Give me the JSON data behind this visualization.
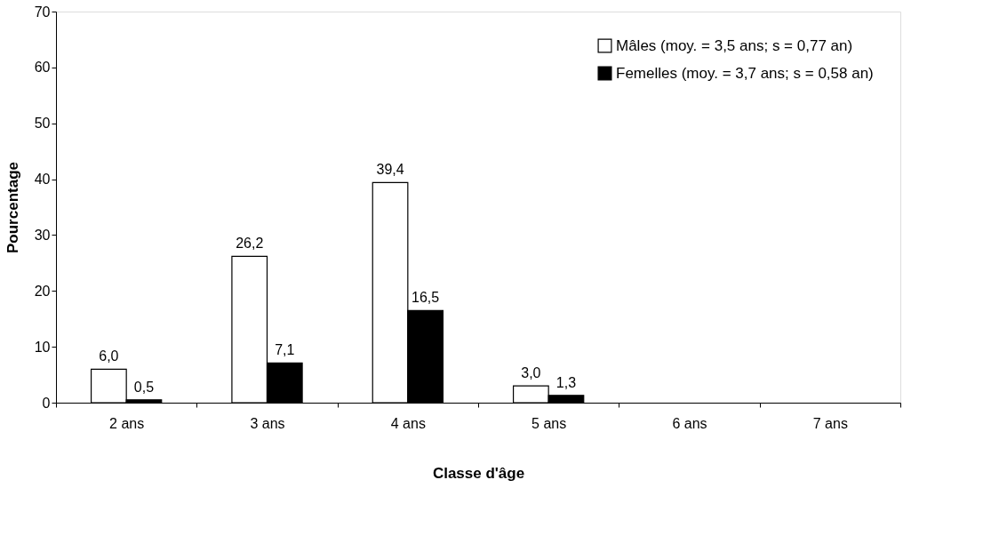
{
  "chart_data": {
    "type": "bar",
    "xlabel": "Classe d'âge",
    "ylabel": "Pourcentage",
    "categories": [
      "2 ans",
      "3 ans",
      "4 ans",
      "5 ans",
      "6 ans",
      "7 ans"
    ],
    "series": [
      {
        "name": "Mâles (moy. = 3,5 ans; s = 0,77 an)",
        "color": "#ffffff",
        "values": [
          6.0,
          26.2,
          39.4,
          3.0,
          null,
          null
        ],
        "value_labels": [
          "6,0",
          "26,2",
          "39,4",
          "3,0",
          null,
          null
        ]
      },
      {
        "name": "Femelles (moy. = 3,7 ans; s = 0,58 an)",
        "color": "#000000",
        "values": [
          0.5,
          7.1,
          16.5,
          1.3,
          null,
          null
        ],
        "value_labels": [
          "0,5",
          "7,1",
          "16,5",
          "1,3",
          null,
          null
        ]
      }
    ],
    "ylim": [
      0,
      70
    ],
    "yticks": [
      0,
      10,
      20,
      30,
      40,
      50,
      60,
      70
    ],
    "grid": false,
    "legend": "top right"
  }
}
